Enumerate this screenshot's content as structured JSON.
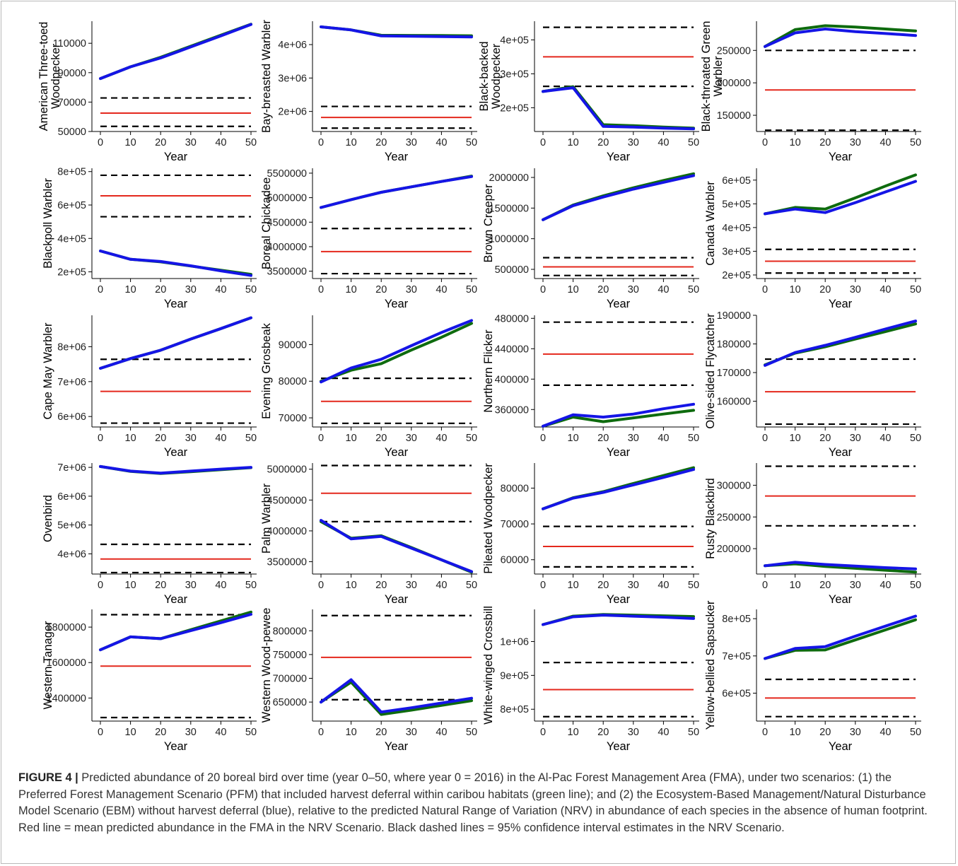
{
  "colors": {
    "pfm": "#0e6b0e",
    "ebm": "#1515e6",
    "nrv_mean": "#e4281d",
    "nrv_ci": "#000000",
    "axis": "#000000"
  },
  "chart_data": [
    {
      "type": "line",
      "ylabel": [
        "American Three-toed",
        "Woodpecker"
      ],
      "xlabel": "Year",
      "x": [
        0,
        10,
        20,
        30,
        40,
        50
      ],
      "ylim": [
        50000,
        125000
      ],
      "yticks": [
        50000,
        70000,
        90000,
        110000
      ],
      "yticklabels": [
        "50000",
        "70000",
        "90000",
        "110000"
      ],
      "series": [
        {
          "key": "pfm",
          "values": [
            86000,
            94000,
            100500,
            108000,
            115500,
            123000
          ]
        },
        {
          "key": "ebm",
          "values": [
            86000,
            94000,
            100000,
            107500,
            115000,
            122800
          ]
        }
      ],
      "nrv_mean": 62500,
      "nrv_ci": [
        53500,
        72800
      ]
    },
    {
      "type": "line",
      "ylabel": [
        "Bay-breasted Warbler"
      ],
      "xlabel": "Year",
      "x": [
        0,
        10,
        20,
        30,
        40,
        50
      ],
      "ylim": [
        1400000,
        4700000
      ],
      "yticks": [
        2000000,
        3000000,
        4000000
      ],
      "yticklabels": [
        "2e+06",
        "3e+06",
        "4e+06"
      ],
      "series": [
        {
          "key": "pfm",
          "values": [
            4530000,
            4440000,
            4280000,
            4275000,
            4270000,
            4265000
          ]
        },
        {
          "key": "ebm",
          "values": [
            4530000,
            4440000,
            4260000,
            4250000,
            4240000,
            4230000
          ]
        }
      ],
      "nrv_mean": 1820000,
      "nrv_ci": [
        1500000,
        2150000
      ]
    },
    {
      "type": "line",
      "ylabel": [
        "Black-backed",
        "Woodpecker"
      ],
      "xlabel": "Year",
      "x": [
        0,
        10,
        20,
        30,
        40,
        50
      ],
      "ylim": [
        130000,
        455000
      ],
      "yticks": [
        200000,
        300000,
        400000
      ],
      "yticklabels": [
        "2e+05",
        "3e+05",
        "4e+05"
      ],
      "series": [
        {
          "key": "pfm",
          "values": [
            248000,
            262000,
            150000,
            147000,
            143000,
            140000
          ]
        },
        {
          "key": "ebm",
          "values": [
            248000,
            259000,
            145000,
            143000,
            140000,
            138000
          ]
        }
      ],
      "nrv_mean": 350000,
      "nrv_ci": [
        263000,
        437000
      ]
    },
    {
      "type": "line",
      "ylabel": [
        "Black-throated Green",
        "Warbler"
      ],
      "xlabel": "Year",
      "x": [
        0,
        10,
        20,
        30,
        40,
        50
      ],
      "ylim": [
        125000,
        295000
      ],
      "yticks": [
        150000,
        200000,
        250000
      ],
      "yticklabels": [
        "150000",
        "200000",
        "250000"
      ],
      "series": [
        {
          "key": "pfm",
          "values": [
            256000,
            282000,
            288000,
            286000,
            283000,
            280000
          ]
        },
        {
          "key": "ebm",
          "values": [
            256000,
            277000,
            283000,
            279000,
            276000,
            273000
          ]
        }
      ],
      "nrv_mean": 189000,
      "nrv_ci": [
        127000,
        250000
      ]
    },
    {
      "type": "line",
      "ylabel": [
        "Blackpoll Warbler"
      ],
      "xlabel": "Year",
      "x": [
        0,
        10,
        20,
        30,
        40,
        50
      ],
      "ylim": [
        160000,
        820000
      ],
      "yticks": [
        200000,
        400000,
        600000,
        800000
      ],
      "yticklabels": [
        "2e+05",
        "4e+05",
        "6e+05",
        "8e+05"
      ],
      "series": [
        {
          "key": "pfm",
          "values": [
            325000,
            275000,
            260000,
            235000,
            210000,
            185000
          ]
        },
        {
          "key": "ebm",
          "values": [
            325000,
            275000,
            262000,
            236000,
            206000,
            178000
          ]
        }
      ],
      "nrv_mean": 655000,
      "nrv_ci": [
        530000,
        778000
      ]
    },
    {
      "type": "line",
      "ylabel": [
        "Boreal Chickadee"
      ],
      "xlabel": "Year",
      "x": [
        0,
        10,
        20,
        30,
        40,
        50
      ],
      "ylim": [
        3350000,
        5600000
      ],
      "yticks": [
        3500000,
        4000000,
        4500000,
        5000000,
        5500000
      ],
      "yticklabels": [
        "3500000",
        "4000000",
        "4500000",
        "5000000",
        "5500000"
      ],
      "series": [
        {
          "key": "pfm",
          "values": [
            4800000,
            4960000,
            5110000,
            5220000,
            5330000,
            5440000
          ]
        },
        {
          "key": "ebm",
          "values": [
            4800000,
            4960000,
            5110000,
            5220000,
            5330000,
            5430000
          ]
        }
      ],
      "nrv_mean": 3900000,
      "nrv_ci": [
        3450000,
        4370000
      ]
    },
    {
      "type": "line",
      "ylabel": [
        "Brown Creeper"
      ],
      "xlabel": "Year",
      "x": [
        0,
        10,
        20,
        30,
        40,
        50
      ],
      "ylim": [
        350000,
        2150000
      ],
      "yticks": [
        500000,
        1000000,
        1500000,
        2000000
      ],
      "yticklabels": [
        "500000",
        "1000000",
        "1500000",
        "2000000"
      ],
      "series": [
        {
          "key": "pfm",
          "values": [
            1310000,
            1550000,
            1700000,
            1830000,
            1950000,
            2060000
          ]
        },
        {
          "key": "ebm",
          "values": [
            1310000,
            1540000,
            1680000,
            1810000,
            1920000,
            2030000
          ]
        }
      ],
      "nrv_mean": 540000,
      "nrv_ci": [
        400000,
        690000
      ]
    },
    {
      "type": "line",
      "ylabel": [
        "Canada Warbler"
      ],
      "xlabel": "Year",
      "x": [
        0,
        10,
        20,
        30,
        40,
        50
      ],
      "ylim": [
        185000,
        650000
      ],
      "yticks": [
        200000,
        300000,
        400000,
        500000,
        600000
      ],
      "yticklabels": [
        "2e+05",
        "3e+05",
        "4e+05",
        "5e+05",
        "6e+05"
      ],
      "series": [
        {
          "key": "pfm",
          "values": [
            458000,
            485000,
            478000,
            525000,
            575000,
            622000
          ]
        },
        {
          "key": "ebm",
          "values": [
            458000,
            478000,
            463000,
            505000,
            550000,
            595000
          ]
        }
      ],
      "nrv_mean": 258000,
      "nrv_ci": [
        208000,
        308000
      ]
    },
    {
      "type": "line",
      "ylabel": [
        "Cape May Warbler"
      ],
      "xlabel": "Year",
      "x": [
        0,
        10,
        20,
        30,
        40,
        50
      ],
      "ylim": [
        5700000,
        8900000
      ],
      "yticks": [
        6000000,
        7000000,
        8000000
      ],
      "yticklabels": [
        "6e+06",
        "7e+06",
        "8e+06"
      ],
      "series": [
        {
          "key": "pfm",
          "values": [
            7380000,
            7660000,
            7900000,
            8220000,
            8520000,
            8830000
          ]
        },
        {
          "key": "ebm",
          "values": [
            7380000,
            7660000,
            7900000,
            8220000,
            8520000,
            8830000
          ]
        }
      ],
      "nrv_mean": 6720000,
      "nrv_ci": [
        5810000,
        7640000
      ]
    },
    {
      "type": "line",
      "ylabel": [
        "Evening Grosbeak"
      ],
      "xlabel": "Year",
      "x": [
        0,
        10,
        20,
        30,
        40,
        50
      ],
      "ylim": [
        67500,
        98000
      ],
      "yticks": [
        70000,
        80000,
        90000
      ],
      "yticklabels": [
        "70000",
        "80000",
        "90000"
      ],
      "series": [
        {
          "key": "pfm",
          "values": [
            80000,
            83000,
            84800,
            88500,
            92000,
            95800
          ]
        },
        {
          "key": "ebm",
          "values": [
            79800,
            83600,
            86000,
            89700,
            93300,
            96600
          ]
        }
      ],
      "nrv_mean": 74500,
      "nrv_ci": [
        68500,
        80800
      ]
    },
    {
      "type": "line",
      "ylabel": [
        "Northern Flicker"
      ],
      "xlabel": "Year",
      "x": [
        0,
        10,
        20,
        30,
        40,
        50
      ],
      "ylim": [
        337000,
        484000
      ],
      "yticks": [
        360000,
        400000,
        440000,
        480000
      ],
      "yticklabels": [
        "360000",
        "400000",
        "440000",
        "480000"
      ],
      "series": [
        {
          "key": "pfm",
          "values": [
            338000,
            350000,
            344000,
            349000,
            354000,
            359000
          ]
        },
        {
          "key": "ebm",
          "values": [
            338000,
            353000,
            350000,
            354000,
            361000,
            367000
          ]
        }
      ],
      "nrv_mean": 433000,
      "nrv_ci": [
        392000,
        475000
      ]
    },
    {
      "type": "line",
      "ylabel": [
        "Olive-sided Flycatcher"
      ],
      "xlabel": "Year",
      "x": [
        0,
        10,
        20,
        30,
        40,
        50
      ],
      "ylim": [
        151000,
        190000
      ],
      "yticks": [
        160000,
        170000,
        180000,
        190000
      ],
      "yticklabels": [
        "160000",
        "170000",
        "180000",
        "190000"
      ],
      "series": [
        {
          "key": "pfm",
          "values": [
            172700,
            176800,
            179000,
            181700,
            184300,
            187000
          ]
        },
        {
          "key": "ebm",
          "values": [
            172500,
            177000,
            179500,
            182300,
            185200,
            188000
          ]
        }
      ],
      "nrv_mean": 163300,
      "nrv_ci": [
        152000,
        174700
      ]
    },
    {
      "type": "line",
      "ylabel": [
        "Ovenbird"
      ],
      "xlabel": "Year",
      "x": [
        0,
        10,
        20,
        30,
        40,
        50
      ],
      "ylim": [
        3300000,
        7150000
      ],
      "yticks": [
        4000000,
        5000000,
        6000000,
        7000000
      ],
      "yticklabels": [
        "4e+06",
        "5e+06",
        "6e+06",
        "7e+06"
      ],
      "series": [
        {
          "key": "pfm",
          "values": [
            7030000,
            6860000,
            6790000,
            6850000,
            6920000,
            6990000
          ]
        },
        {
          "key": "ebm",
          "values": [
            7030000,
            6870000,
            6800000,
            6870000,
            6940000,
            7000000
          ]
        }
      ],
      "nrv_mean": 3820000,
      "nrv_ci": [
        3350000,
        4330000
      ]
    },
    {
      "type": "line",
      "ylabel": [
        "Palm Warbler"
      ],
      "xlabel": "Year",
      "x": [
        0,
        10,
        20,
        30,
        40,
        50
      ],
      "ylim": [
        3300000,
        5100000
      ],
      "yticks": [
        3500000,
        4000000,
        4500000,
        5000000
      ],
      "yticklabels": [
        "3500000",
        "4000000",
        "4500000",
        "5000000"
      ],
      "series": [
        {
          "key": "pfm",
          "values": [
            4150000,
            3880000,
            3920000,
            3730000,
            3530000,
            3330000
          ]
        },
        {
          "key": "ebm",
          "values": [
            4170000,
            3870000,
            3910000,
            3720000,
            3530000,
            3340000
          ]
        }
      ],
      "nrv_mean": 4610000,
      "nrv_ci": [
        4150000,
        5060000
      ]
    },
    {
      "type": "line",
      "ylabel": [
        "Pileated Woodpecker"
      ],
      "xlabel": "Year",
      "x": [
        0,
        10,
        20,
        30,
        40,
        50
      ],
      "ylim": [
        56000,
        87000
      ],
      "yticks": [
        60000,
        70000,
        80000
      ],
      "yticklabels": [
        "60000",
        "70000",
        "80000"
      ],
      "series": [
        {
          "key": "pfm",
          "values": [
            74200,
            77300,
            79000,
            81300,
            83500,
            85700
          ]
        },
        {
          "key": "ebm",
          "values": [
            74200,
            77200,
            78800,
            80900,
            83000,
            85200
          ]
        }
      ],
      "nrv_mean": 63700,
      "nrv_ci": [
        58000,
        69300
      ]
    },
    {
      "type": "line",
      "ylabel": [
        "Rusty Blackbird"
      ],
      "xlabel": "Year",
      "x": [
        0,
        10,
        20,
        30,
        40,
        50
      ],
      "ylim": [
        160000,
        335000
      ],
      "yticks": [
        200000,
        250000,
        300000
      ],
      "yticklabels": [
        "200000",
        "250000",
        "300000"
      ],
      "series": [
        {
          "key": "pfm",
          "values": [
            173000,
            176000,
            172000,
            169000,
            166000,
            163000
          ]
        },
        {
          "key": "ebm",
          "values": [
            173000,
            178500,
            175000,
            172500,
            170000,
            168000
          ]
        }
      ],
      "nrv_mean": 283000,
      "nrv_ci": [
        236000,
        330000
      ]
    },
    {
      "type": "line",
      "ylabel": [
        "Western Tanager"
      ],
      "xlabel": "Year",
      "x": [
        0,
        10,
        20,
        30,
        40,
        50
      ],
      "ylim": [
        1270000,
        1900000
      ],
      "yticks": [
        1400000,
        1600000,
        1800000
      ],
      "yticklabels": [
        "1400000",
        "1600000",
        "1800000"
      ],
      "series": [
        {
          "key": "pfm",
          "values": [
            1672000,
            1745000,
            1735000,
            1785000,
            1835000,
            1885000
          ]
        },
        {
          "key": "ebm",
          "values": [
            1672000,
            1745000,
            1735000,
            1780000,
            1825000,
            1872000
          ]
        }
      ],
      "nrv_mean": 1580000,
      "nrv_ci": [
        1290000,
        1870000
      ]
    },
    {
      "type": "line",
      "ylabel": [
        "Western Wood-pewee"
      ],
      "xlabel": "Year",
      "x": [
        0,
        10,
        20,
        30,
        40,
        50
      ],
      "ylim": [
        610000,
        845000
      ],
      "yticks": [
        650000,
        700000,
        750000,
        800000
      ],
      "yticklabels": [
        "650000",
        "700000",
        "750000",
        "800000"
      ],
      "series": [
        {
          "key": "pfm",
          "values": [
            650000,
            692000,
            624000,
            633000,
            643000,
            653000
          ]
        },
        {
          "key": "ebm",
          "values": [
            650000,
            697000,
            629000,
            638000,
            648000,
            658000
          ]
        }
      ],
      "nrv_mean": 744000,
      "nrv_ci": [
        655000,
        832000
      ]
    },
    {
      "type": "line",
      "ylabel": [
        "White-winged Crossbill"
      ],
      "xlabel": "Year",
      "x": [
        0,
        10,
        20,
        30,
        40,
        50
      ],
      "ylim": [
        765000,
        1095000
      ],
      "yticks": [
        800000,
        900000,
        1000000
      ],
      "yticklabels": [
        "8e+05",
        "9e+05",
        "1e+06"
      ],
      "series": [
        {
          "key": "pfm",
          "values": [
            1050000,
            1075000,
            1080000,
            1078000,
            1076000,
            1074000
          ]
        },
        {
          "key": "ebm",
          "values": [
            1050000,
            1073000,
            1078000,
            1075000,
            1072000,
            1068000
          ]
        }
      ],
      "nrv_mean": 858000,
      "nrv_ci": [
        778000,
        938000
      ]
    },
    {
      "type": "line",
      "ylabel": [
        "Yellow-bellied Sapsucker"
      ],
      "xlabel": "Year",
      "x": [
        0,
        10,
        20,
        30,
        40,
        50
      ],
      "ylim": [
        525000,
        825000
      ],
      "yticks": [
        600000,
        700000,
        800000
      ],
      "yticklabels": [
        "6e+05",
        "7e+05",
        "8e+05"
      ],
      "series": [
        {
          "key": "pfm",
          "values": [
            693000,
            715000,
            716000,
            743000,
            770000,
            797000
          ]
        },
        {
          "key": "ebm",
          "values": [
            693000,
            720000,
            725000,
            753000,
            780000,
            807000
          ]
        }
      ],
      "nrv_mean": 587000,
      "nrv_ci": [
        537000,
        637000
      ]
    }
  ],
  "caption": {
    "label": "FIGURE 4 |",
    "text": "Predicted abundance of 20 boreal bird over time (year 0–50, where year 0 = 2016) in the Al-Pac Forest Management Area (FMA), under two scenarios: (1) the Preferred Forest Management Scenario (PFM) that included harvest deferral within caribou habitats (green line); and (2) the Ecosystem-Based Management/Natural Disturbance Model Scenario (EBM) without harvest deferral (blue), relative to the predicted Natural Range of Variation (NRV) in abundance of each species in the absence of human footprint. Red line = mean predicted abundance in the FMA in the NRV Scenario. Black dashed lines = 95% confidence interval estimates in the NRV Scenario."
  }
}
